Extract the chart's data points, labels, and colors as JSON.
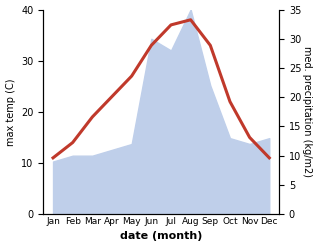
{
  "months": [
    "Jan",
    "Feb",
    "Mar",
    "Apr",
    "May",
    "Jun",
    "Jul",
    "Aug",
    "Sep",
    "Oct",
    "Nov",
    "Dec"
  ],
  "temperature": [
    11,
    14,
    19,
    23,
    27,
    33,
    37,
    38,
    33,
    22,
    15,
    11
  ],
  "precipitation": [
    9,
    10,
    10,
    11,
    12,
    30,
    28,
    35,
    22,
    13,
    12,
    13
  ],
  "temp_color": "#c0392b",
  "precip_color": "#bfcfea",
  "temp_ylim": [
    0,
    40
  ],
  "temp_yticks": [
    0,
    10,
    20,
    30,
    40
  ],
  "precip_ylim": [
    0,
    35
  ],
  "precip_yticks": [
    0,
    5,
    10,
    15,
    20,
    25,
    30,
    35
  ],
  "xlabel": "date (month)",
  "ylabel_left": "max temp (C)",
  "ylabel_right": "med. precipitation (kg/m2)",
  "background_color": "#ffffff",
  "line_width": 2.2
}
